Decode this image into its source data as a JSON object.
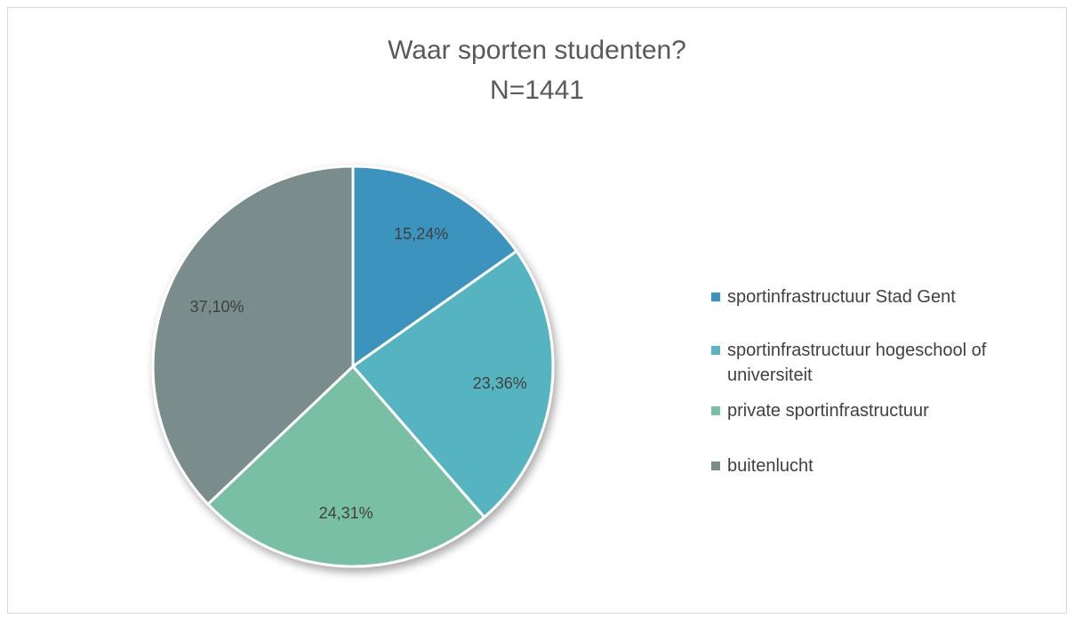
{
  "chart_data": {
    "type": "pie",
    "title": "Waar sporten studenten?",
    "subtitle": "N=1441",
    "categories": [
      "sportinfrastructuur Stad Gent",
      "sportinfrastructuur hogeschool of universiteit",
      "private sportinfrastructuur",
      "buitenlucht"
    ],
    "values": [
      15.24,
      23.36,
      24.31,
      37.1
    ],
    "value_labels": [
      "15,24%",
      "23,36%",
      "24,31%",
      "37,10%"
    ],
    "colors": [
      "#3a93be",
      "#57b4c0",
      "#79bfa6",
      "#7a8c8c"
    ],
    "legend": "right"
  }
}
